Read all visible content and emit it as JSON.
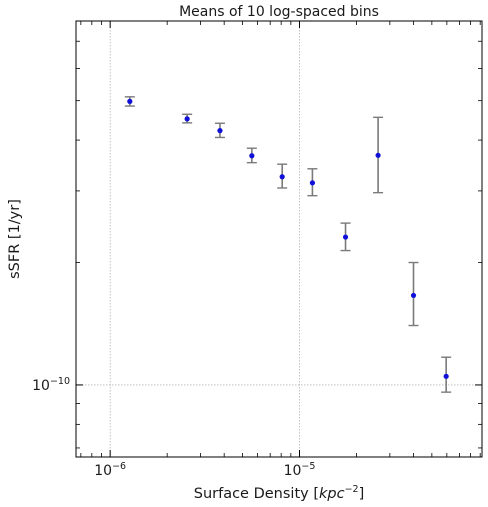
{
  "chart_data": {
    "type": "scatter",
    "title": "Means of 10 log-spaced bins",
    "xlabel_text": "Surface Density [",
    "xlabel_unit": "kpc",
    "xlabel_exp": "−2",
    "xlabel_close": "]",
    "ylabel": "sSFR [1/yr]",
    "x_scale": "log",
    "y_scale": "log",
    "xlim": [
      6.6e-07,
      9.2e-05
    ],
    "ylim": [
      6.65e-11,
      7.85e-10
    ],
    "grid": true,
    "x_ticks": [
      {
        "value": 1e-06,
        "base": "10",
        "exp": "−6"
      },
      {
        "value": 1e-05,
        "base": "10",
        "exp": "−5"
      }
    ],
    "y_ticks": [
      {
        "value": 1e-10,
        "base": "10",
        "exp": "−10"
      }
    ],
    "marker_color": "#1010d8",
    "errorbar_color": "#7a7a7a",
    "points": [
      {
        "x": 1.27e-06,
        "y": 4.98e-10,
        "yerr_low": 4.85e-10,
        "yerr_high": 5.11e-10
      },
      {
        "x": 2.55e-06,
        "y": 4.51e-10,
        "yerr_low": 4.41e-10,
        "yerr_high": 4.63e-10
      },
      {
        "x": 3.8e-06,
        "y": 4.22e-10,
        "yerr_low": 4.06e-10,
        "yerr_high": 4.4e-10
      },
      {
        "x": 5.6e-06,
        "y": 3.66e-10,
        "yerr_low": 3.52e-10,
        "yerr_high": 3.82e-10
      },
      {
        "x": 8.1e-06,
        "y": 3.25e-10,
        "yerr_low": 3.05e-10,
        "yerr_high": 3.49e-10
      },
      {
        "x": 1.17e-05,
        "y": 3.14e-10,
        "yerr_low": 2.92e-10,
        "yerr_high": 3.4e-10
      },
      {
        "x": 1.75e-05,
        "y": 2.31e-10,
        "yerr_low": 2.14e-10,
        "yerr_high": 2.5e-10
      },
      {
        "x": 2.6e-05,
        "y": 3.67e-10,
        "yerr_low": 2.97e-10,
        "yerr_high": 4.55e-10
      },
      {
        "x": 4e-05,
        "y": 1.66e-10,
        "yerr_low": 1.4e-10,
        "yerr_high": 2e-10
      },
      {
        "x": 5.95e-05,
        "y": 1.05e-10,
        "yerr_low": 9.6e-11,
        "yerr_high": 1.17e-10
      }
    ]
  }
}
